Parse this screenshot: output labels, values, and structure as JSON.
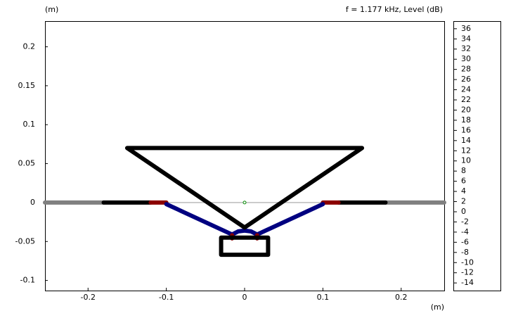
{
  "chart_data": {
    "type": "geometry",
    "title": "f = 1.177 kHz, Level  (dB)",
    "x_label": "(m)",
    "y_label": "(m)",
    "xlim": [
      -0.255,
      0.255
    ],
    "ylim": [
      -0.113,
      0.233
    ],
    "xticks": [
      -0.2,
      -0.1,
      0,
      0.1,
      0.2
    ],
    "yticks": [
      0.2,
      0.15,
      0.1,
      0.05,
      0,
      -0.05,
      -0.1
    ],
    "series": [
      {
        "color": "#808080",
        "x": [
          -0.255,
          -0.18,
          null,
          0.18,
          0.255
        ],
        "y": [
          0,
          0,
          null,
          0,
          0
        ]
      },
      {
        "color": "#000000",
        "x": [
          -0.18,
          -0.12,
          null,
          0.12,
          0.18
        ],
        "y": [
          0,
          0,
          null,
          0,
          0
        ]
      },
      {
        "color": "#8b0000",
        "x": [
          -0.12,
          -0.1,
          null,
          0.1,
          0.12
        ],
        "y": [
          0,
          0,
          null,
          0,
          0
        ]
      },
      {
        "color": "#000080",
        "x": [
          -0.1,
          -0.016,
          -0.008,
          0,
          0.008,
          0.016,
          0.1
        ],
        "y": [
          -0.002,
          -0.041,
          -0.037,
          -0.036,
          -0.037,
          -0.041,
          -0.002
        ]
      },
      {
        "color": "#8b0000",
        "x": [
          -0.016,
          -0.016,
          null,
          0.016,
          0.016
        ],
        "y": [
          -0.042,
          -0.046,
          null,
          -0.042,
          -0.046
        ]
      },
      {
        "color": "#000000",
        "x": [
          -0.15,
          0.15,
          0,
          -0.15
        ],
        "y": [
          0.07,
          0.07,
          -0.032,
          0.07
        ]
      },
      {
        "color": "#000000",
        "x": [
          -0.03,
          0.03,
          0.03,
          -0.03,
          -0.03
        ],
        "y": [
          -0.045,
          -0.045,
          -0.067,
          -0.067,
          -0.045
        ]
      }
    ],
    "colorbar_lim": [
      -15.5,
      37.5
    ],
    "colorbar_ticks": [
      36,
      34,
      32,
      30,
      28,
      26,
      24,
      22,
      20,
      18,
      16,
      14,
      12,
      10,
      8,
      6,
      4,
      2,
      0,
      -2,
      -4,
      -6,
      -8,
      -10,
      -12,
      -14
    ]
  }
}
